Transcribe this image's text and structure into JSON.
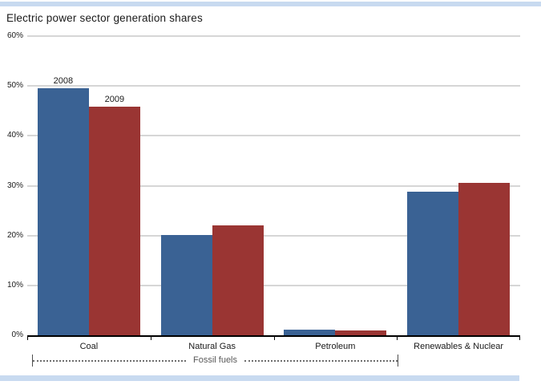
{
  "page": {
    "title": "Electric power sector generation shares"
  },
  "decor": {
    "accent_strip_color": "#c8daf0",
    "gridline_color": "#d6d6d6",
    "axis_color": "#000000"
  },
  "chart_data": {
    "type": "bar",
    "title": "Electric power sector generation shares",
    "categories": [
      "Coal",
      "Natural Gas",
      "Petroleum",
      "Renewables & Nuclear"
    ],
    "series": [
      {
        "name": "2008",
        "color": "#3a6294",
        "values": [
          49.6,
          20.1,
          1.1,
          28.8
        ]
      },
      {
        "name": "2009",
        "color": "#9a3533",
        "values": [
          45.9,
          22.1,
          0.9,
          30.6
        ]
      }
    ],
    "series_label_group_index": 0,
    "ylim": [
      0,
      60
    ],
    "yticks": [
      "0%",
      "10%",
      "20%",
      "30%",
      "40%",
      "50%",
      "60%"
    ],
    "ytick_values": [
      0,
      10,
      20,
      30,
      40,
      50,
      60
    ],
    "grid": true,
    "legend_position": "labels above first bar group",
    "xlabel": "",
    "ylabel": "",
    "annotation": {
      "label": "Fossil fuels",
      "spans_categories": [
        "Coal",
        "Natural Gas",
        "Petroleum"
      ]
    }
  }
}
